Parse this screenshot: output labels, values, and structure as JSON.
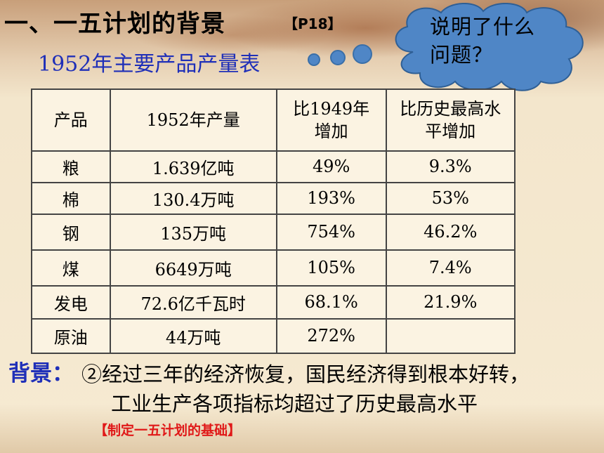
{
  "title": "一、一五计划的背景",
  "page_ref": "【P18】",
  "subtitle": "1952年主要产品产量表",
  "cloud_text": "说明了什么问题？",
  "table": {
    "headers": [
      "产品",
      "1952年产量",
      "比1949年增加",
      "比历史最高水平增加"
    ],
    "rows": [
      [
        "粮",
        "1.639亿吨",
        "49%",
        "9.3%"
      ],
      [
        "棉",
        "130.4万吨",
        "193%",
        "53%"
      ],
      [
        "钢",
        "135万吨",
        "754%",
        "46.2%"
      ],
      [
        "煤",
        "6649万吨",
        "105%",
        "7.4%"
      ],
      [
        "发电",
        "72.6亿千瓦时",
        "68.1%",
        "21.9%"
      ],
      [
        "原油",
        "44万吨",
        "272%",
        ""
      ]
    ]
  },
  "background": {
    "label": "背景：",
    "line1": "②经过三年的经济恢复，国民经济得到根本好转，",
    "line2": "工业生产各项指标均超过了历史最高水平"
  },
  "basis_note": "【制定一五计划的基础】",
  "colors": {
    "title_blue": "#1f2fb8",
    "cloud_fill": "#4f86c6",
    "note_red": "#e01818"
  }
}
